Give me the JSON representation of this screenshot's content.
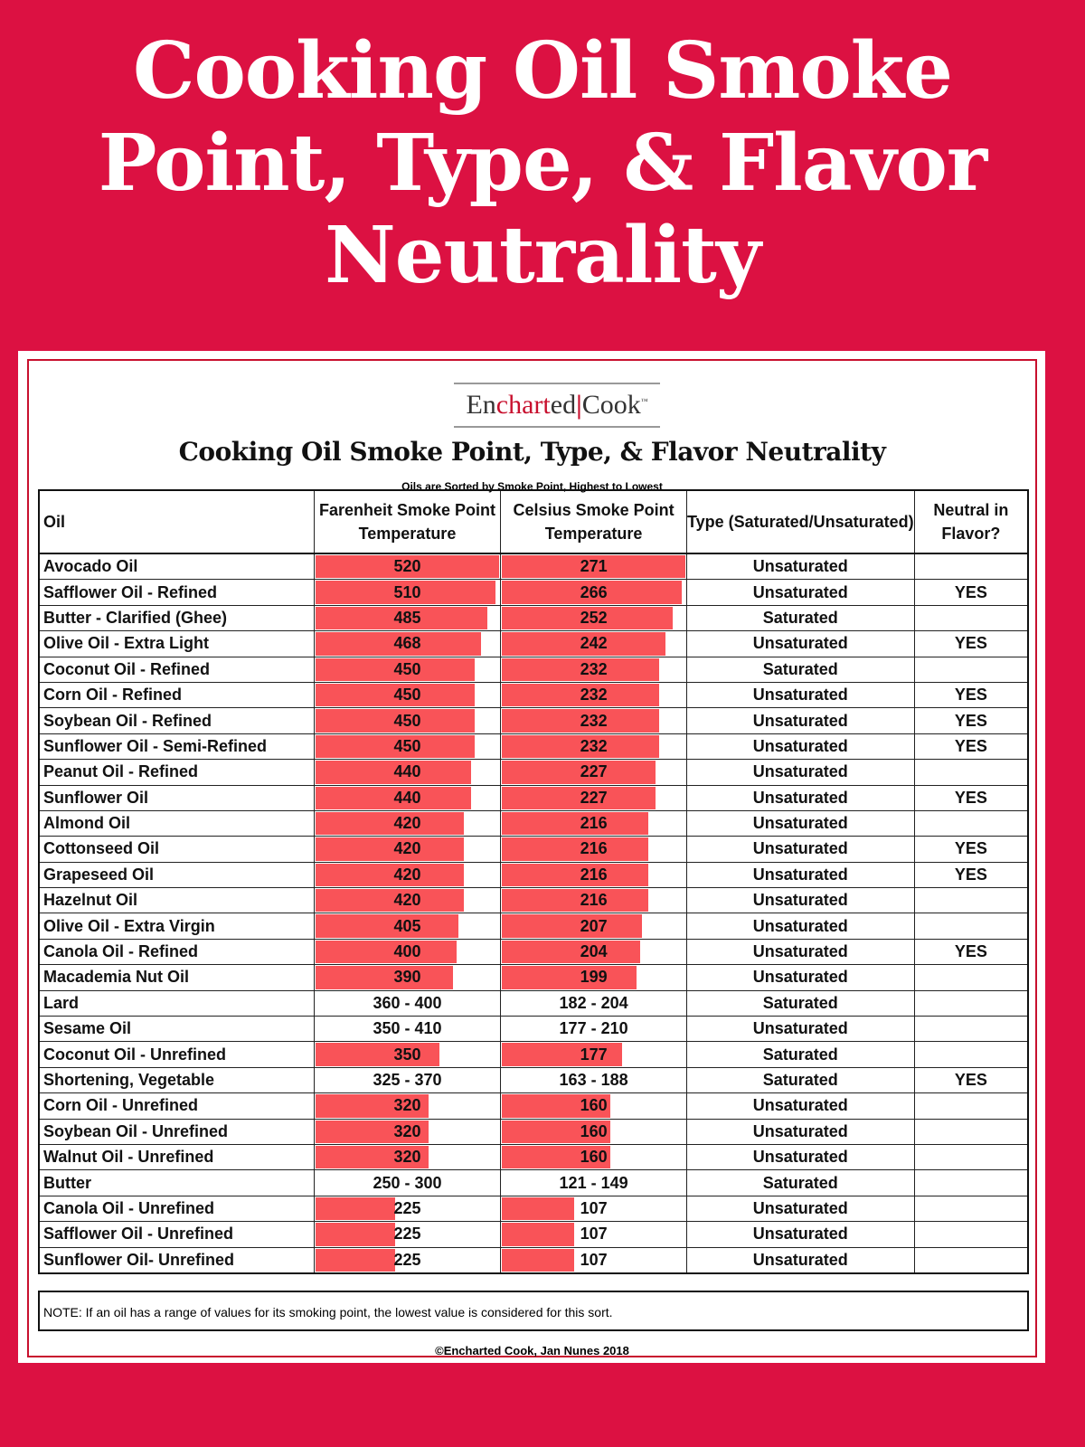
{
  "banner_title": "Cooking Oil Smoke Point, Type, & Flavor Neutrality",
  "logo": {
    "part1": "En",
    "part2": "chart",
    "part3": "ed",
    "part4": "Cook",
    "tm": "™"
  },
  "colors": {
    "background": "#dc1142",
    "bar": "#f95358",
    "border": "#c8102e"
  },
  "chart_data": {
    "type": "table",
    "title": "Cooking Oil Smoke Point, Type, & Flavor Neutrality",
    "subtitle": "Oils are Sorted by Smoke Point, Highest to Lowest",
    "columns": [
      "Oil",
      "Farenheit Smoke Point Temperature",
      "Celsius Smoke Point Temperature",
      "Type (Saturated/Unsaturated)",
      "Neutral in Flavor?"
    ],
    "bar_max": {
      "fahrenheit": 520,
      "celsius": 271
    },
    "rows": [
      {
        "oil": "Avocado Oil",
        "f": "520",
        "c": "271",
        "type": "Unsaturated",
        "neutral": ""
      },
      {
        "oil": "Safflower Oil - Refined",
        "f": "510",
        "c": "266",
        "type": "Unsaturated",
        "neutral": "YES"
      },
      {
        "oil": "Butter - Clarified (Ghee)",
        "f": "485",
        "c": "252",
        "type": "Saturated",
        "neutral": ""
      },
      {
        "oil": "Olive Oil - Extra Light",
        "f": "468",
        "c": "242",
        "type": "Unsaturated",
        "neutral": "YES"
      },
      {
        "oil": "Coconut Oil - Refined",
        "f": "450",
        "c": "232",
        "type": "Saturated",
        "neutral": ""
      },
      {
        "oil": "Corn Oil - Refined",
        "f": "450",
        "c": "232",
        "type": "Unsaturated",
        "neutral": "YES"
      },
      {
        "oil": "Soybean Oil - Refined",
        "f": "450",
        "c": "232",
        "type": "Unsaturated",
        "neutral": "YES"
      },
      {
        "oil": "Sunflower Oil - Semi-Refined",
        "f": "450",
        "c": "232",
        "type": "Unsaturated",
        "neutral": "YES"
      },
      {
        "oil": "Peanut Oil - Refined",
        "f": "440",
        "c": "227",
        "type": "Unsaturated",
        "neutral": ""
      },
      {
        "oil": "Sunflower Oil",
        "f": "440",
        "c": "227",
        "type": "Unsaturated",
        "neutral": "YES"
      },
      {
        "oil": "Almond Oil",
        "f": "420",
        "c": "216",
        "type": "Unsaturated",
        "neutral": ""
      },
      {
        "oil": "Cottonseed Oil",
        "f": "420",
        "c": "216",
        "type": "Unsaturated",
        "neutral": "YES"
      },
      {
        "oil": "Grapeseed Oil",
        "f": "420",
        "c": "216",
        "type": "Unsaturated",
        "neutral": "YES"
      },
      {
        "oil": "Hazelnut Oil",
        "f": "420",
        "c": "216",
        "type": "Unsaturated",
        "neutral": ""
      },
      {
        "oil": "Olive Oil - Extra Virgin",
        "f": "405",
        "c": "207",
        "type": "Unsaturated",
        "neutral": ""
      },
      {
        "oil": "Canola Oil - Refined",
        "f": "400",
        "c": "204",
        "type": "Unsaturated",
        "neutral": "YES"
      },
      {
        "oil": "Macademia Nut Oil",
        "f": "390",
        "c": "199",
        "type": "Unsaturated",
        "neutral": ""
      },
      {
        "oil": "Lard",
        "f": "360 - 400",
        "c": "182 - 204",
        "type": "Saturated",
        "neutral": ""
      },
      {
        "oil": "Sesame Oil",
        "f": "350 - 410",
        "c": "177 - 210",
        "type": "Unsaturated",
        "neutral": ""
      },
      {
        "oil": "Coconut Oil - Unrefined",
        "f": "350",
        "c": "177",
        "type": "Saturated",
        "neutral": ""
      },
      {
        "oil": "Shortening, Vegetable",
        "f": "325 - 370",
        "c": "163 - 188",
        "type": "Saturated",
        "neutral": "YES"
      },
      {
        "oil": "Corn Oil - Unrefined",
        "f": "320",
        "c": "160",
        "type": "Unsaturated",
        "neutral": ""
      },
      {
        "oil": "Soybean Oil - Unrefined",
        "f": "320",
        "c": "160",
        "type": "Unsaturated",
        "neutral": ""
      },
      {
        "oil": "Walnut Oil - Unrefined",
        "f": "320",
        "c": "160",
        "type": "Unsaturated",
        "neutral": ""
      },
      {
        "oil": "Butter",
        "f": "250 - 300",
        "c": "121 - 149",
        "type": "Saturated",
        "neutral": ""
      },
      {
        "oil": "Canola Oil - Unrefined",
        "f": "225",
        "c": "107",
        "type": "Unsaturated",
        "neutral": ""
      },
      {
        "oil": "Safflower Oil - Unrefined",
        "f": "225",
        "c": "107",
        "type": "Unsaturated",
        "neutral": ""
      },
      {
        "oil": "Sunflower Oil- Unrefined",
        "f": "225",
        "c": "107",
        "type": "Unsaturated",
        "neutral": ""
      }
    ]
  },
  "note": "NOTE:  If an oil has a range of values for its smoking point, the lowest value is considered for this sort.",
  "copyright": "©Encharted Cook, Jan Nunes 2018"
}
